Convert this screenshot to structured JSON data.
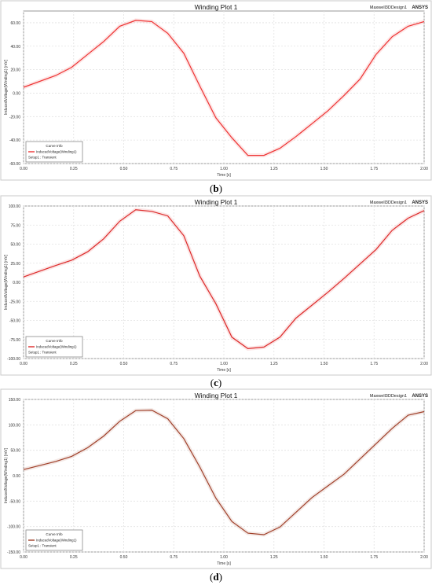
{
  "charts": [
    {
      "caption_open": "(",
      "caption_letter": "b",
      "caption_close": ")",
      "title": "Winding Plot 1",
      "design": "Maxwell3DDesign1",
      "brand": "ANSYS",
      "xlabel": "Time [s]",
      "ylabel": "InducedVoltage(Winding1) [mV]",
      "yticks": [
        "-60.00",
        "-40.00",
        "-20.00",
        "0.00",
        "20.00",
        "40.00",
        "60.00"
      ],
      "xticks": [
        "0.00",
        "0.25",
        "0.50",
        "0.75",
        "1.00",
        "1.25",
        "1.50",
        "1.75",
        "2.00"
      ],
      "legend_title": "Curve Info",
      "legend_series": "InducedVoltage(Winding1)",
      "legend_setup": "Setup1 : Transient"
    },
    {
      "caption_open": "(",
      "caption_letter": "c",
      "caption_close": ")",
      "title": "Winding Plot 1",
      "design": "Maxwell3DDesign1",
      "brand": "ANSYS",
      "xlabel": "Time [s]",
      "ylabel": "InducedVoltage(Winding1) [mV]",
      "yticks": [
        "-100.00",
        "-75.00",
        "-50.00",
        "-25.00",
        "0.00",
        "25.00",
        "50.00",
        "75.00",
        "100.00"
      ],
      "xticks": [
        "0.00",
        "0.25",
        "0.50",
        "0.75",
        "1.00",
        "1.25",
        "1.50",
        "1.75",
        "2.00"
      ],
      "legend_title": "Curve Info",
      "legend_series": "InducedVoltage(Winding1)",
      "legend_setup": "Setup1 : Transient"
    },
    {
      "caption_open": "(",
      "caption_letter": "d",
      "caption_close": ")",
      "title": "Winding Plot 1",
      "design": "Maxwell3DDesign1",
      "brand": "ANSYS",
      "xlabel": "Time [s]",
      "ylabel": "InducedVoltage(Winding1) [mV]",
      "yticks": [
        "-150.00",
        "-100.00",
        "-50.00",
        "0.00",
        "50.00",
        "100.00",
        "150.00"
      ],
      "xticks": [
        "0.00",
        "0.25",
        "0.50",
        "0.75",
        "1.00",
        "1.25",
        "1.50",
        "1.75",
        "2.00"
      ],
      "legend_title": "Curve Info",
      "legend_series": "InducedVoltage(Winding1)",
      "legend_setup": "Setup1 : Transient"
    }
  ],
  "chart_data": [
    {
      "type": "line",
      "title": "Winding Plot 1",
      "xlabel": "Time [s]",
      "ylabel": "InducedVoltage(Winding1) [mV]",
      "xlim": [
        0,
        2
      ],
      "ylim": [
        -60,
        70
      ],
      "grid": true,
      "legend": "bottom-left",
      "line_color": "#ee3333",
      "series": [
        {
          "name": "InducedVoltage(Winding1)",
          "x": [
            0.0,
            0.16,
            0.24,
            0.32,
            0.4,
            0.48,
            0.56,
            0.64,
            0.72,
            0.8,
            0.88,
            0.96,
            1.04,
            1.12,
            1.2,
            1.28,
            1.36,
            1.44,
            1.52,
            1.6,
            1.68,
            1.76,
            1.84,
            1.92,
            2.0
          ],
          "y": [
            5,
            15,
            22,
            33,
            44,
            57,
            62,
            61,
            51,
            34,
            6,
            -21,
            -38,
            -53,
            -53,
            -47,
            -37,
            -26,
            -15,
            -2,
            12,
            33,
            48,
            57,
            61
          ]
        }
      ]
    },
    {
      "type": "line",
      "title": "Winding Plot 1",
      "xlabel": "Time [s]",
      "ylabel": "InducedVoltage(Winding1) [mV]",
      "xlim": [
        0,
        2
      ],
      "ylim": [
        -100,
        100
      ],
      "grid": true,
      "legend": "bottom-left",
      "line_color": "#dd2a2a",
      "series": [
        {
          "name": "InducedVoltage(Winding1)",
          "x": [
            0.0,
            0.16,
            0.24,
            0.32,
            0.4,
            0.48,
            0.56,
            0.64,
            0.72,
            0.8,
            0.88,
            0.96,
            1.04,
            1.12,
            1.2,
            1.28,
            1.36,
            1.44,
            1.52,
            1.6,
            1.68,
            1.76,
            1.84,
            1.92,
            2.0
          ],
          "y": [
            7,
            22,
            29,
            40,
            57,
            80,
            95,
            93,
            87,
            61,
            8,
            -28,
            -72,
            -87,
            -85,
            -72,
            -47,
            -30,
            -13,
            5,
            24,
            43,
            68,
            84,
            94
          ]
        }
      ]
    },
    {
      "type": "line",
      "title": "Winding Plot 1",
      "xlabel": "Time [s]",
      "ylabel": "InducedVoltage(Winding1) [mV]",
      "xlim": [
        0,
        2
      ],
      "ylim": [
        -150,
        150
      ],
      "grid": true,
      "legend": "bottom-left",
      "line_color": "#a0402a",
      "series": [
        {
          "name": "InducedVoltage(Winding1)",
          "x": [
            0.0,
            0.16,
            0.24,
            0.32,
            0.4,
            0.48,
            0.56,
            0.64,
            0.72,
            0.8,
            0.88,
            0.96,
            1.04,
            1.12,
            1.2,
            1.28,
            1.36,
            1.44,
            1.52,
            1.6,
            1.68,
            1.76,
            1.84,
            1.92,
            2.0
          ],
          "y": [
            12,
            28,
            38,
            55,
            78,
            107,
            128,
            129,
            112,
            73,
            17,
            -44,
            -90,
            -113,
            -116,
            -101,
            -72,
            -43,
            -20,
            3,
            33,
            63,
            93,
            119,
            126
          ]
        }
      ]
    }
  ]
}
